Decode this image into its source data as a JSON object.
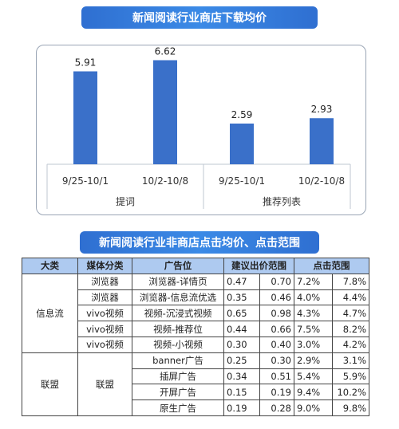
{
  "banner1": "新闻阅读行业商店下载均价",
  "banner2": "新闻阅读行业非商店点击均价、点击范围",
  "chart_data": {
    "type": "bar",
    "groups": [
      {
        "name": "提词",
        "categories": [
          "9/25-10/1",
          "10/2-10/8"
        ],
        "values": [
          5.91,
          6.62
        ]
      },
      {
        "name": "推荐列表",
        "categories": [
          "9/25-10/1",
          "10/2-10/8"
        ],
        "values": [
          2.59,
          2.93
        ]
      }
    ],
    "value_labels": [
      "5.91",
      "6.62",
      "2.59",
      "2.93"
    ],
    "ylim": [
      0,
      7
    ],
    "bar_color": "#3a70c9",
    "grid": false
  },
  "table": {
    "headers": [
      "大类",
      "媒体分类",
      "广告位",
      "建议出价范围",
      "点击范围"
    ],
    "group1": "信息流",
    "group2_cat": "联盟",
    "group2_media": "联盟",
    "rows": [
      {
        "media": "浏览器",
        "slot": "浏览器-详情页",
        "b1": "0.47",
        "b2": "0.70",
        "c1": "7.2%",
        "c2": "7.8%"
      },
      {
        "media": "浏览器",
        "slot": "浏览器-信息流优选",
        "b1": "0.35",
        "b2": "0.46",
        "c1": "4.0%",
        "c2": "4.4%"
      },
      {
        "media": "vivo视频",
        "slot": "视频-沉浸式视频",
        "b1": "0.65",
        "b2": "0.98",
        "c1": "4.3%",
        "c2": "4.7%"
      },
      {
        "media": "vivo视频",
        "slot": "视频-推荐位",
        "b1": "0.44",
        "b2": "0.66",
        "c1": "7.5%",
        "c2": "8.2%"
      },
      {
        "media": "vivo视频",
        "slot": "视频-小视频",
        "b1": "0.30",
        "b2": "0.40",
        "c1": "3.0%",
        "c2": "4.2%"
      },
      {
        "media": "",
        "slot": "banner广告",
        "b1": "0.25",
        "b2": "0.30",
        "c1": "2.9%",
        "c2": "3.1%"
      },
      {
        "media": "",
        "slot": "插屏广告",
        "b1": "0.34",
        "b2": "0.51",
        "c1": "5.4%",
        "c2": "5.9%"
      },
      {
        "media": "",
        "slot": "开屏广告",
        "b1": "0.15",
        "b2": "0.19",
        "c1": "9.4%",
        "c2": "10.2%"
      },
      {
        "media": "",
        "slot": "原生广告",
        "b1": "0.19",
        "b2": "0.28",
        "c1": "9.0%",
        "c2": "9.8%"
      }
    ]
  }
}
